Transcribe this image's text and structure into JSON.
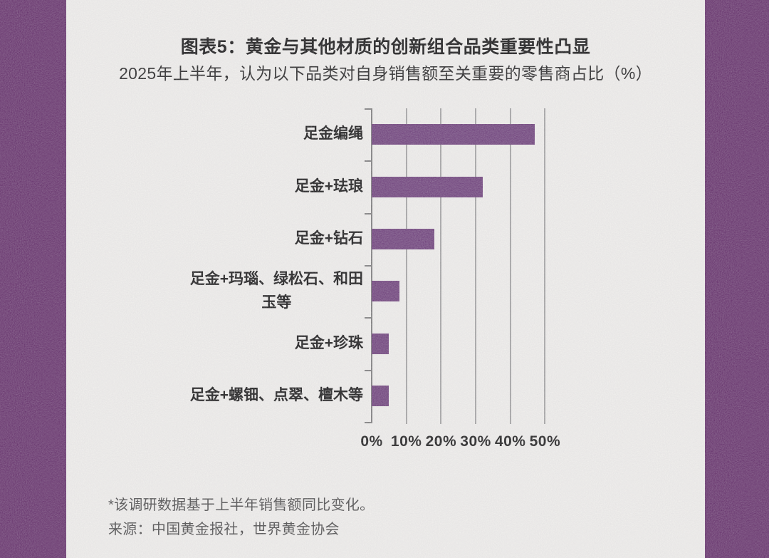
{
  "header": {
    "title": "图表5：黄金与其他材质的创新组合品类重要性凸显",
    "subtitle": "2025年上半年，认为以下品类对自身销售额至关重要的零售商占比（%）"
  },
  "chart_data": {
    "type": "bar",
    "orientation": "horizontal",
    "title": "图表5：黄金与其他材质的创新组合品类重要性凸显",
    "subtitle": "2025年上半年，认为以下品类对自身销售额至关重要的零售商占比（%）",
    "categories": [
      "足金编绳",
      "足金+珐琅",
      "足金+钻石",
      "足金+玛瑙、绿松石、和田\n玉等",
      "足金+珍珠",
      "足金+螺钿、点翠、檀木等"
    ],
    "values": [
      47,
      32,
      18,
      8,
      5,
      5
    ],
    "unit": "%",
    "xlim": [
      0,
      50
    ],
    "x_ticks": [
      {
        "label": "0%",
        "value": 0
      },
      {
        "label": "10%",
        "value": 10
      },
      {
        "label": "20%",
        "value": 20
      },
      {
        "label": "30%",
        "value": 30
      },
      {
        "label": "40%",
        "value": 40
      },
      {
        "label": "50%",
        "value": 50
      }
    ],
    "grid": true,
    "legend": "none"
  },
  "footnotes": {
    "note": "*该调研数据基于上半年销售额同比变化。",
    "source": "来源：中国黄金报社，世界黄金协会"
  },
  "colors": {
    "side_strip": "#622c68",
    "bar": "#6c3d79",
    "gridline": "#a3a3a3",
    "axis": "#7a7a7a",
    "paper": "#f2f1ee"
  }
}
